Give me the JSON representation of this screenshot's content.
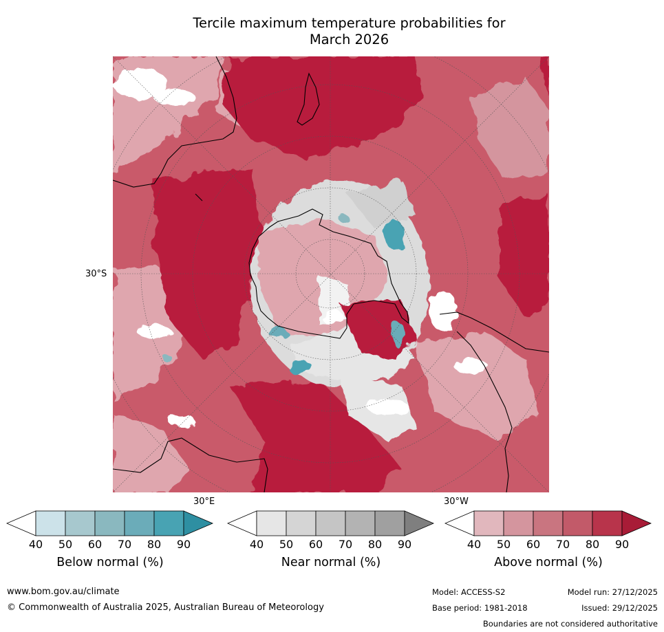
{
  "title": {
    "line1": "Tercile maximum temperature probabilities for",
    "line2": "March 2026"
  },
  "map": {
    "lat_label": "30°S",
    "lon_label_east": "30°E",
    "lon_label_west": "30°W",
    "colors": {
      "above_dark": "#b81f3d",
      "above_mid": "#c95a6a",
      "above_light": "#dfa6ae",
      "near": "#dcdcdc",
      "below": "#4a9db0",
      "coast": "#000000"
    }
  },
  "colorbars": [
    {
      "label": "Below normal (%)",
      "ticks": [
        "40",
        "50",
        "60",
        "70",
        "80",
        "90"
      ],
      "colors": [
        "#ffffff",
        "#cce2e9",
        "#a7c8ce",
        "#8ab8bf",
        "#6bacb9",
        "#48a3b3",
        "#2e8fa2"
      ]
    },
    {
      "label": "Near normal (%)",
      "ticks": [
        "40",
        "50",
        "60",
        "70",
        "80",
        "90"
      ],
      "colors": [
        "#ffffff",
        "#e6e6e6",
        "#d5d5d5",
        "#c5c5c5",
        "#b3b3b3",
        "#a0a0a0",
        "#7f7f7f"
      ]
    },
    {
      "label": "Above normal (%)",
      "ticks": [
        "40",
        "50",
        "60",
        "70",
        "80",
        "90"
      ],
      "colors": [
        "#ffffff",
        "#e1b7bd",
        "#d4959e",
        "#c97580",
        "#c25a69",
        "#b8344b",
        "#a81c37"
      ]
    }
  ],
  "footer": {
    "website": "www.bom.gov.au/climate",
    "copyright": "© Commonwealth of Australia 2025, Australian Bureau of Meteorology",
    "model": "Model: ACCESS-S2",
    "model_run": "Model run: 27/12/2025",
    "base_period": "Base period: 1981-2018",
    "issued": "Issued: 29/12/2025",
    "disclaimer": "Boundaries are not considered authoritative"
  }
}
